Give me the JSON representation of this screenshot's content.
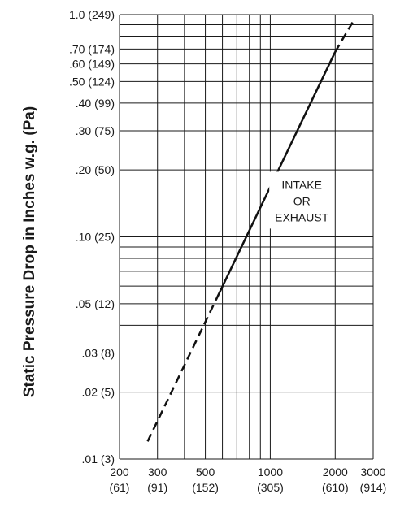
{
  "chart_data": {
    "type": "line",
    "title": "",
    "xlabel": "",
    "ylabel": "Static Pressure Drop in Inches w.g. (Pa)",
    "x_scale": "log",
    "y_scale": "log",
    "xlim": [
      200,
      3000
    ],
    "ylim": [
      0.01,
      1.0
    ],
    "grid": true,
    "x_gridlines": [
      200,
      300,
      400,
      500,
      600,
      700,
      800,
      900,
      1000,
      2000,
      3000
    ],
    "y_gridlines": [
      0.01,
      0.02,
      0.03,
      0.04,
      0.05,
      0.06,
      0.07,
      0.08,
      0.09,
      0.1,
      0.2,
      0.3,
      0.4,
      0.5,
      0.6,
      0.7,
      0.8,
      0.9,
      1.0
    ],
    "x_ticks": [
      {
        "value": 200,
        "label": "200",
        "sublabel": "(61)"
      },
      {
        "value": 300,
        "label": "300",
        "sublabel": "(91)"
      },
      {
        "value": 500,
        "label": "500",
        "sublabel": "(152)"
      },
      {
        "value": 1000,
        "label": "1000",
        "sublabel": "(305)"
      },
      {
        "value": 2000,
        "label": "2000",
        "sublabel": "(610)"
      },
      {
        "value": 3000,
        "label": "3000",
        "sublabel": "(914)"
      }
    ],
    "y_ticks": [
      {
        "value": 1.0,
        "label": "1.0 (249)"
      },
      {
        "value": 0.7,
        "label": ".70 (174)"
      },
      {
        "value": 0.6,
        "label": ".60 (149)"
      },
      {
        "value": 0.5,
        "label": ".50 (124)"
      },
      {
        "value": 0.4,
        "label": ".40 (99)"
      },
      {
        "value": 0.3,
        "label": ".30 (75)"
      },
      {
        "value": 0.2,
        "label": ".20 (50)"
      },
      {
        "value": 0.1,
        "label": ".10 (25)"
      },
      {
        "value": 0.05,
        "label": ".05 (12)"
      },
      {
        "value": 0.03,
        "label": ".03 (8)"
      },
      {
        "value": 0.02,
        "label": ".02 (5)"
      },
      {
        "value": 0.01,
        "label": ".01 (3)"
      }
    ],
    "series": [
      {
        "name": "INTAKE OR EXHAUST",
        "segments": [
          {
            "style": "dashed",
            "points": [
              [
                270,
                0.012
              ],
              [
                560,
                0.052
              ]
            ]
          },
          {
            "style": "solid",
            "points": [
              [
                560,
                0.052
              ],
              [
                2000,
                0.68
              ]
            ]
          },
          {
            "style": "dashed",
            "points": [
              [
                2000,
                0.68
              ],
              [
                2450,
                0.95
              ]
            ]
          }
        ]
      }
    ],
    "annotations": [
      {
        "lines": [
          "INTAKE",
          "OR",
          "EXHAUST"
        ],
        "x": 1400,
        "y": 0.145
      }
    ]
  }
}
